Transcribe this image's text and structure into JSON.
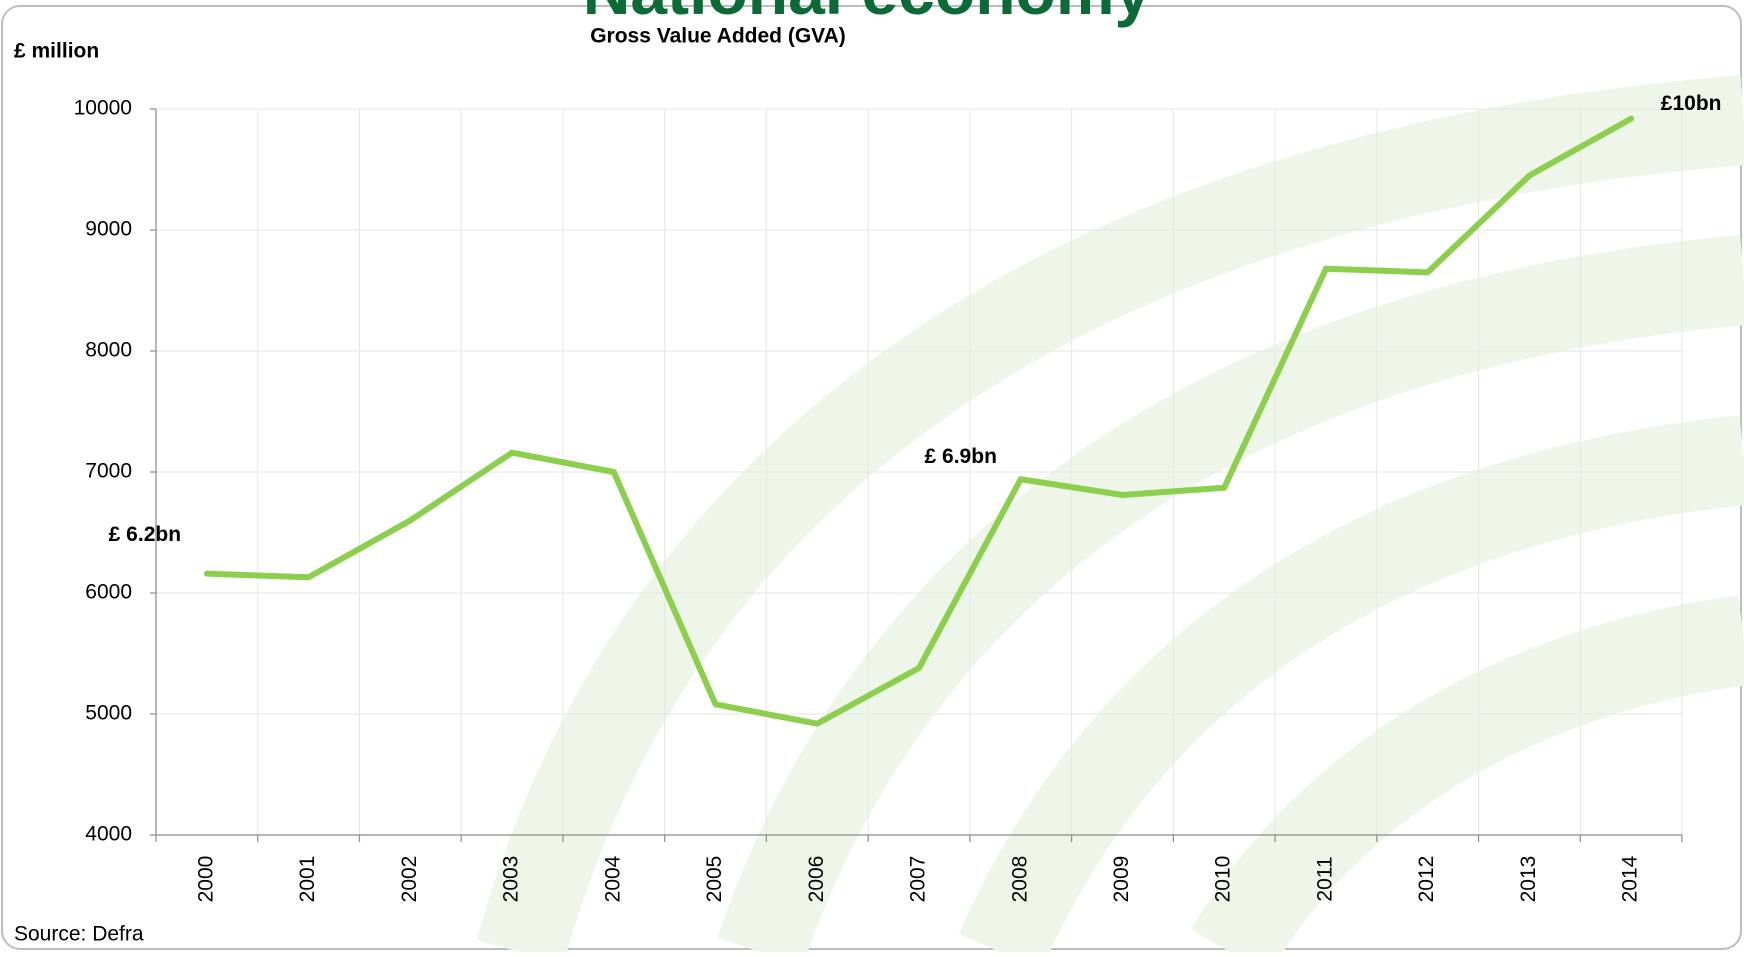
{
  "banner": "National economy",
  "chart_data": {
    "type": "line",
    "title": "Gross Value Added (GVA)",
    "y_label": "£ million",
    "source": "Source: Defra",
    "categories": [
      "2000",
      "2001",
      "2002",
      "2003",
      "2004",
      "2005",
      "2006",
      "2007",
      "2008",
      "2009",
      "2010",
      "2011",
      "2012",
      "2013",
      "2014"
    ],
    "values": [
      6160,
      6130,
      6600,
      7160,
      7000,
      5080,
      4920,
      5380,
      6940,
      6810,
      6870,
      8680,
      8650,
      9450,
      9920
    ],
    "color": "#8ccf4d",
    "ylim": [
      4000,
      10000
    ],
    "yticks": [
      4000,
      5000,
      6000,
      7000,
      8000,
      9000,
      10000
    ],
    "grid": true,
    "annotations": [
      {
        "text": "£ 6.2bn",
        "x": "2000"
      },
      {
        "text": "£ 6.9bn",
        "x": "2008"
      },
      {
        "text": "£10bn",
        "x": "2014"
      }
    ]
  }
}
